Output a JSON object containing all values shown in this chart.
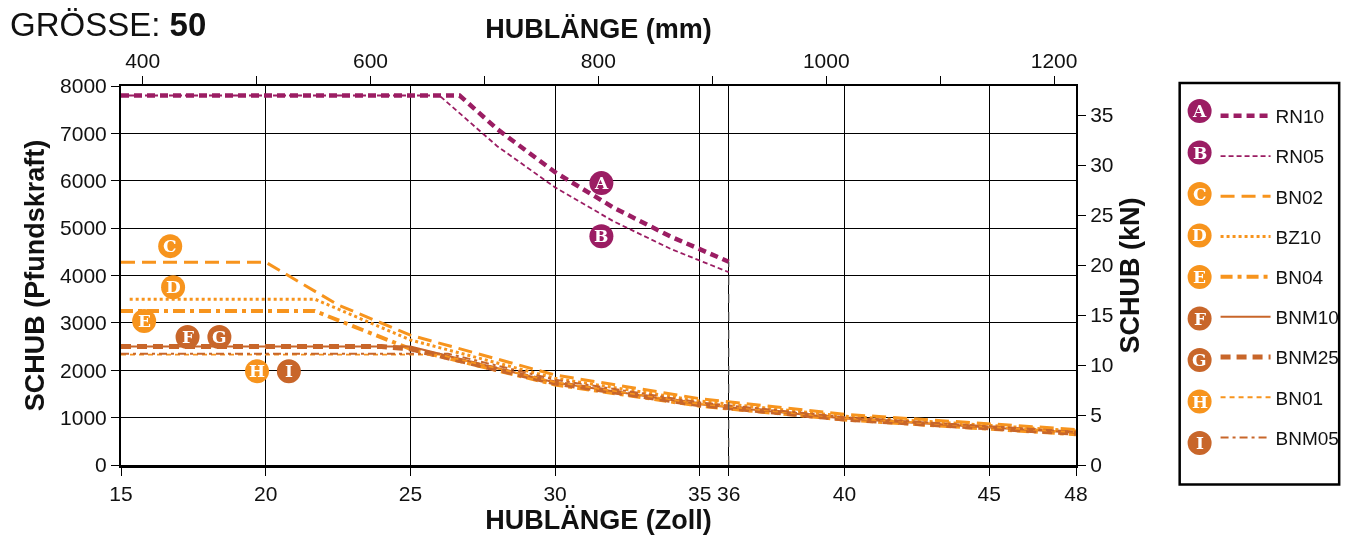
{
  "chart_data": {
    "type": "line",
    "title": "GRÖSSE:",
    "subtitle": "50",
    "xlabel": "HUBLÄNGE (Zoll)",
    "x2label": "HUBLÄNGE (mm)",
    "ylabel": "SCHUB (Pfundskraft)",
    "y2label": "SCHUB (kN)",
    "xlim": [
      15,
      48
    ],
    "xticks": [
      15,
      20,
      25,
      30,
      35,
      36,
      40,
      45,
      48
    ],
    "x2lim": [
      381,
      1219.2
    ],
    "x2ticks": [
      400,
      {
        "value": 500,
        "label": null
      },
      600,
      {
        "value": 700,
        "label": null
      },
      800,
      {
        "value": 900,
        "label": null
      },
      1000,
      {
        "value": 1100,
        "label": null
      },
      1200
    ],
    "ylim": [
      0,
      8000
    ],
    "yticks": [
      0,
      1000,
      2000,
      3000,
      4000,
      5000,
      6000,
      7000,
      8000
    ],
    "y2lim": [
      0,
      37.9
    ],
    "y2ticks": [
      0,
      5,
      10,
      15,
      20,
      25,
      30,
      35
    ],
    "grid": true,
    "legend": "right",
    "series": [
      {
        "name": "RN10",
        "color": "#9b1d63",
        "line_style": "dashed",
        "x": [
          15,
          26.7,
          28,
          30,
          32,
          34,
          36
        ],
        "values": [
          7800,
          7800,
          7090,
          6180,
          5440,
          4820,
          4290
        ]
      },
      {
        "name": "RN05",
        "color": "#9b1d63",
        "line_style": "dashed",
        "x": [
          15,
          26,
          28,
          30,
          32,
          34,
          36
        ],
        "values": [
          7800,
          7800,
          6730,
          5860,
          5150,
          4560,
          4070
        ]
      },
      {
        "name": "BN02",
        "color": "#f7941d",
        "line_style": "dashed",
        "x": [
          15,
          20,
          22.5,
          25,
          30,
          35,
          40,
          48
        ],
        "values": [
          4280,
          4280,
          3380,
          2740,
          1900,
          1400,
          1070,
          750
        ]
      },
      {
        "name": "BZ10",
        "color": "#f7941d",
        "line_style": "dotted",
        "x": [
          15.3,
          21.7,
          25,
          30,
          35,
          40,
          48
        ],
        "values": [
          3500,
          3500,
          2640,
          1830,
          1350,
          1030,
          720
        ]
      },
      {
        "name": "BN04",
        "color": "#f7941d",
        "line_style": "dashdot",
        "x": [
          15,
          21.7,
          25,
          30,
          35,
          40,
          48
        ],
        "values": [
          3250,
          3250,
          2450,
          1700,
          1250,
          960,
          650
        ]
      },
      {
        "name": "BNM10",
        "color": "#c8662a",
        "line_style": "solid",
        "x": [
          15,
          25,
          30,
          35,
          40,
          48
        ],
        "values": [
          2500,
          2500,
          1740,
          1280,
          980,
          680
        ]
      },
      {
        "name": "BNM25",
        "color": "#c8662a",
        "line_style": "dashed",
        "x": [
          15,
          24,
          25,
          30,
          35,
          40,
          48
        ],
        "values": [
          2500,
          2500,
          2450,
          1730,
          1270,
          970,
          670
        ]
      },
      {
        "name": "BN01",
        "color": "#f7941d",
        "line_style": "dashed",
        "x": [
          15,
          26,
          30,
          35,
          40,
          48
        ],
        "values": [
          2330,
          2330,
          1750,
          1290,
          990,
          690
        ]
      },
      {
        "name": "BNM05",
        "color": "#c8662a",
        "line_style": "dashdot",
        "x": [
          15,
          26.3,
          30,
          35,
          40,
          48
        ],
        "values": [
          2350,
          2350,
          1800,
          1320,
          1010,
          700
        ]
      },
      {
        "type": "line",
        "color": "#555555",
        "line_style": "dashed",
        "x": [
          36,
          36
        ],
        "values": [
          0,
          4290
        ]
      }
    ],
    "annotations": [
      "A",
      "B",
      "C",
      "D",
      "E",
      "F",
      "G",
      "H",
      "I",
      {
        "text": "A",
        "x": 31.6,
        "y": 5950
      },
      {
        "text": "B",
        "x": 31.6,
        "y": 4830
      },
      {
        "text": "C",
        "x": 16.7,
        "y": 4620
      },
      {
        "text": "D",
        "x": 16.8,
        "y": 3750
      },
      {
        "text": "E",
        "x": 15.8,
        "y": 3040
      },
      {
        "text": "F",
        "x": 17.3,
        "y": 2700
      },
      {
        "text": "G",
        "x": 18.4,
        "y": 2700
      },
      {
        "text": "H",
        "x": 19.7,
        "y": 1980
      },
      {
        "text": "I",
        "x": 20.8,
        "y": 1980
      }
    ]
  }
}
